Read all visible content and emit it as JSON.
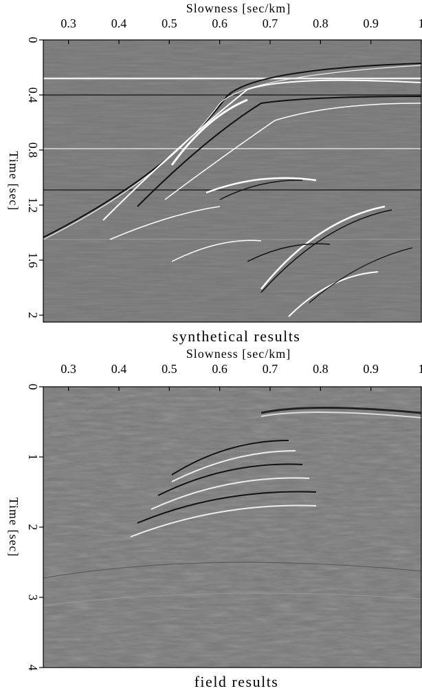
{
  "chart_data": [
    {
      "type": "image",
      "xlabel": "Slowness [sec/km]",
      "ylabel": "Time [sec]",
      "caption": "synthetical results",
      "xlim": [
        0.25,
        1
      ],
      "xticks": [
        0.3,
        0.4,
        0.5,
        0.6,
        0.7,
        0.8,
        0.9,
        1
      ],
      "ylim": [
        0,
        2.05
      ],
      "yticks": [
        0,
        0.4,
        0.8,
        1.2,
        1.6,
        2
      ]
    },
    {
      "type": "image",
      "xlabel": "Slowness [sec/km]",
      "ylabel": "Time [sec]",
      "caption": "field results",
      "xlim": [
        0.25,
        1
      ],
      "xticks": [
        0.3,
        0.4,
        0.5,
        0.6,
        0.7,
        0.8,
        0.9,
        1
      ],
      "ylim": [
        0,
        4
      ],
      "yticks": [
        0,
        1,
        2,
        3,
        4
      ]
    }
  ]
}
